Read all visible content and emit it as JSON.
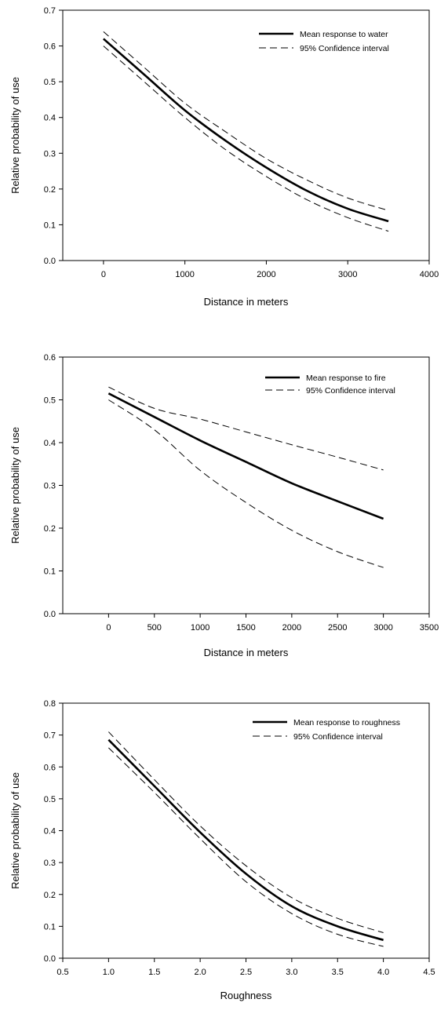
{
  "chart_data": [
    {
      "type": "line",
      "title": "",
      "xlabel": "Distance in meters",
      "ylabel": "Relative probability of use",
      "xlim": [
        -500,
        4000
      ],
      "ylim": [
        0,
        0.7
      ],
      "xticks": [
        0,
        1000,
        2000,
        3000,
        4000
      ],
      "xtick_labels": [
        "0",
        "1000",
        "2000",
        "3000",
        "4000"
      ],
      "yticks": [
        0,
        0.1,
        0.2,
        0.3,
        0.4,
        0.5,
        0.6,
        0.7
      ],
      "ytick_labels": [
        "0.0",
        "0.1",
        "0.2",
        "0.3",
        "0.4",
        "0.5",
        "0.6",
        "0.7"
      ],
      "grid": false,
      "legend_position": "top-right",
      "x": [
        0,
        500,
        1000,
        1500,
        2000,
        2500,
        3000,
        3500
      ],
      "series": [
        {
          "name": "Mean response to water",
          "style": "solid",
          "values": [
            0.62,
            0.52,
            0.42,
            0.335,
            0.26,
            0.195,
            0.145,
            0.11
          ]
        },
        {
          "name": "95% Confidence interval",
          "style": "dashed",
          "values": [
            0.64,
            0.54,
            0.44,
            0.36,
            0.285,
            0.225,
            0.175,
            0.14
          ]
        },
        {
          "name": "",
          "style": "dashed",
          "values": [
            0.6,
            0.5,
            0.4,
            0.31,
            0.235,
            0.17,
            0.12,
            0.082
          ]
        }
      ]
    },
    {
      "type": "line",
      "title": "",
      "xlabel": "Distance in meters",
      "ylabel": "Relative probability of use",
      "xlim": [
        -500,
        3500
      ],
      "ylim": [
        0,
        0.6
      ],
      "xticks": [
        0,
        500,
        1000,
        1500,
        2000,
        2500,
        3000,
        3500
      ],
      "xtick_labels": [
        "0",
        "500",
        "1000",
        "1500",
        "2000",
        "2500",
        "3000",
        "3500"
      ],
      "yticks": [
        0,
        0.1,
        0.2,
        0.3,
        0.4,
        0.5,
        0.6
      ],
      "ytick_labels": [
        "0.0",
        "0.1",
        "0.2",
        "0.3",
        "0.4",
        "0.5",
        "0.6"
      ],
      "grid": false,
      "legend_position": "top-right",
      "x": [
        0,
        500,
        1000,
        1500,
        2000,
        2500,
        3000
      ],
      "series": [
        {
          "name": "Mean response to fire",
          "style": "solid",
          "values": [
            0.515,
            0.46,
            0.405,
            0.355,
            0.305,
            0.263,
            0.222
          ]
        },
        {
          "name": "95% Confidence interval",
          "style": "dashed",
          "values": [
            0.53,
            0.48,
            0.455,
            0.425,
            0.395,
            0.366,
            0.336
          ]
        },
        {
          "name": "",
          "style": "dashed",
          "values": [
            0.5,
            0.43,
            0.335,
            0.26,
            0.195,
            0.145,
            0.108
          ]
        }
      ]
    },
    {
      "type": "line",
      "title": "",
      "xlabel": "Roughness",
      "ylabel": "Relative probability of use",
      "xlim": [
        0.5,
        4.5
      ],
      "ylim": [
        0,
        0.8
      ],
      "xticks": [
        0.5,
        1.0,
        1.5,
        2.0,
        2.5,
        3.0,
        3.5,
        4.0,
        4.5
      ],
      "xtick_labels": [
        "0.5",
        "1.0",
        "1.5",
        "2.0",
        "2.5",
        "3.0",
        "3.5",
        "4.0",
        "4.5"
      ],
      "yticks": [
        0,
        0.1,
        0.2,
        0.3,
        0.4,
        0.5,
        0.6,
        0.7,
        0.8
      ],
      "ytick_labels": [
        "0.0",
        "0.1",
        "0.2",
        "0.3",
        "0.4",
        "0.5",
        "0.6",
        "0.7",
        "0.8"
      ],
      "grid": false,
      "legend_position": "top-right",
      "x": [
        1.0,
        1.5,
        2.0,
        2.5,
        3.0,
        3.5,
        4.0
      ],
      "series": [
        {
          "name": "Mean response to roughness",
          "style": "solid",
          "values": [
            0.685,
            0.54,
            0.395,
            0.265,
            0.163,
            0.1,
            0.057
          ]
        },
        {
          "name": "95% Confidence interval",
          "style": "dashed",
          "values": [
            0.71,
            0.56,
            0.415,
            0.29,
            0.19,
            0.125,
            0.08
          ]
        },
        {
          "name": "",
          "style": "dashed",
          "values": [
            0.66,
            0.52,
            0.375,
            0.24,
            0.14,
            0.075,
            0.037
          ]
        }
      ]
    }
  ]
}
